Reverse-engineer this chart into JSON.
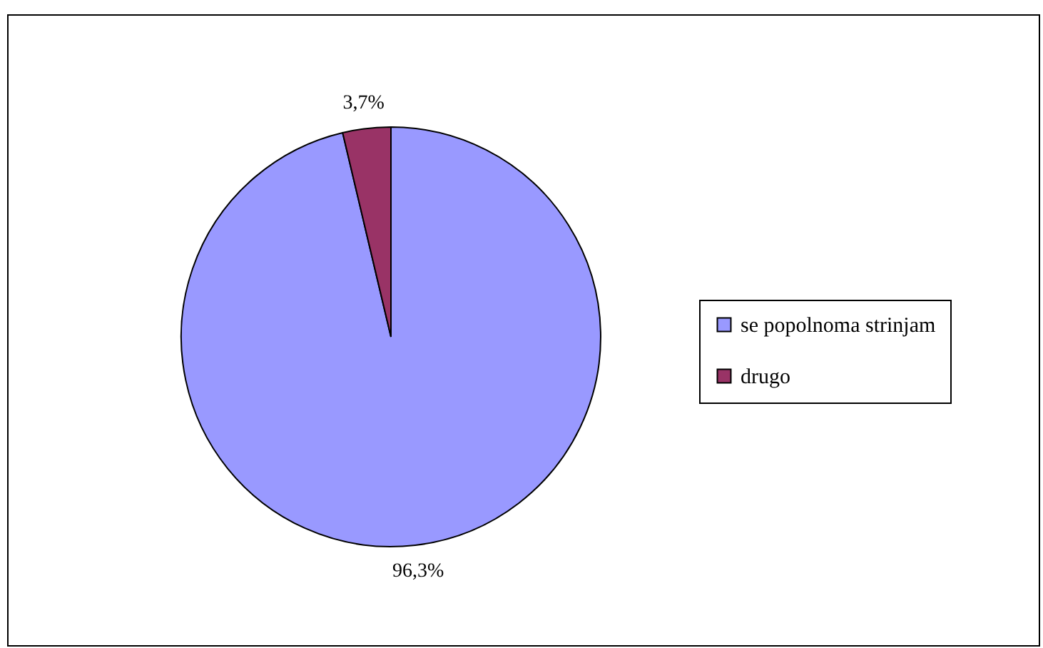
{
  "chart_data": {
    "type": "pie",
    "categories": [
      "se popolnoma strinjam",
      "drugo"
    ],
    "values": [
      96.3,
      3.7
    ],
    "colors": [
      "#9999ff",
      "#993366"
    ],
    "value_labels": [
      "96,3%",
      "3,7%"
    ],
    "legend": "right"
  }
}
